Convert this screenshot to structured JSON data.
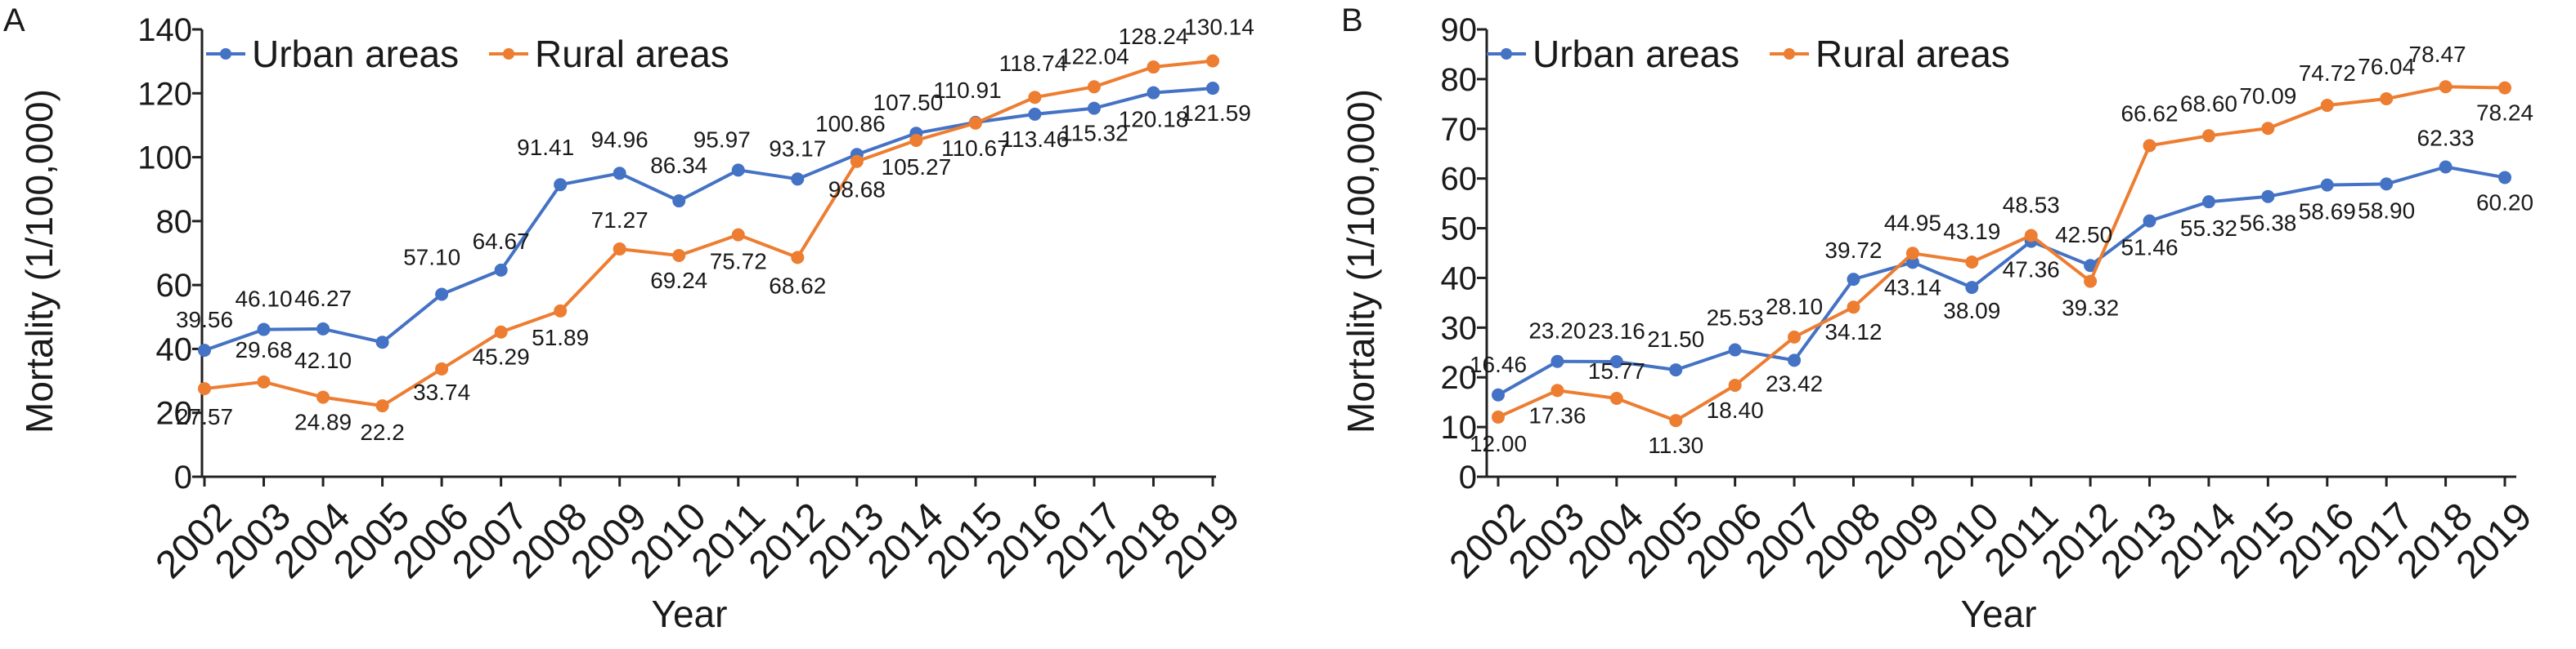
{
  "colors": {
    "urban": "#4472C4",
    "rural": "#ED7D31",
    "axis": "#222222",
    "text": "#1a1a1a"
  },
  "legend_position": "top-left",
  "chart_data": [
    {
      "type": "line",
      "panel": "A",
      "xlabel": "Year",
      "ylabel": "Mortality (1/100,000)",
      "ylim": [
        0,
        140
      ],
      "yticks": [
        "0",
        "20",
        "40",
        "60",
        "80",
        "100",
        "120",
        "140"
      ],
      "categories": [
        "2002",
        "2003",
        "2004",
        "2005",
        "2006",
        "2007",
        "2008",
        "2009",
        "2010",
        "2011",
        "2012",
        "2013",
        "2014",
        "2015",
        "2016",
        "2017",
        "2018",
        "2019"
      ],
      "grid": false,
      "series": [
        {
          "name": "Urban areas",
          "values": [
            39.56,
            46.1,
            46.27,
            42.1,
            57.1,
            64.67,
            91.41,
            94.96,
            86.34,
            95.97,
            93.17,
            100.86,
            107.5,
            110.91,
            113.46,
            115.32,
            120.18,
            121.59
          ],
          "labels": [
            "39.56",
            "46.10",
            "46.27",
            "",
            "57.10",
            "64.67",
            "91.41",
            "94.96",
            "86.34",
            "95.97",
            "93.17",
            "100.86",
            "107.50",
            "110.91",
            "113.46",
            "115.32",
            "120.18",
            "121.59"
          ]
        },
        {
          "name": "Rural areas",
          "values": [
            27.57,
            29.68,
            24.89,
            22.2,
            33.74,
            45.29,
            51.89,
            71.27,
            69.24,
            75.72,
            68.62,
            98.68,
            105.27,
            110.67,
            118.74,
            122.04,
            128.24,
            130.14
          ],
          "labels": [
            "27.57",
            "29.68",
            "24.89",
            "22.2",
            "33.74",
            "45.29",
            "51.89",
            "71.27",
            "69.24",
            "75.72",
            "68.62",
            "98.68",
            "105.27",
            "110.67",
            "118.74",
            "122.04",
            "128.24",
            "130.14"
          ]
        }
      ],
      "extra_labels": [
        "42.10"
      ]
    },
    {
      "type": "line",
      "panel": "B",
      "xlabel": "Year",
      "ylabel": "Mortality (1/100,000)",
      "ylim": [
        0,
        90
      ],
      "yticks": [
        "0",
        "10",
        "20",
        "30",
        "40",
        "50",
        "60",
        "70",
        "80",
        "90"
      ],
      "categories": [
        "2002",
        "2003",
        "2004",
        "2005",
        "2006",
        "2007",
        "2008",
        "2009",
        "2010",
        "2011",
        "2012",
        "2013",
        "2014",
        "2015",
        "2016",
        "2017",
        "2018",
        "2019"
      ],
      "grid": false,
      "series": [
        {
          "name": "Urban areas",
          "values": [
            16.46,
            23.2,
            23.16,
            21.5,
            25.53,
            23.42,
            39.72,
            43.14,
            38.09,
            47.36,
            42.5,
            51.46,
            55.32,
            56.38,
            58.69,
            58.9,
            62.33,
            60.2
          ],
          "labels": [
            "16.46",
            "23.20",
            "23.16",
            "21.50",
            "25.53",
            "23.42",
            "39.72",
            "43.14",
            "38.09",
            "47.36",
            "42.50",
            "51.46",
            "55.32",
            "56.38",
            "58.69",
            "58.90",
            "62.33",
            "60.20"
          ]
        },
        {
          "name": "Rural areas",
          "values": [
            12.0,
            17.36,
            15.77,
            11.3,
            18.4,
            28.1,
            34.12,
            44.95,
            43.19,
            48.53,
            39.32,
            66.62,
            68.6,
            70.09,
            74.72,
            76.04,
            78.47,
            78.24
          ],
          "labels": [
            "12.00",
            "17.36",
            "15.77",
            "11.30",
            "18.40",
            "28.10",
            "34.12",
            "44.95",
            "43.19",
            "48.53",
            "39.32",
            "66.62",
            "68.60",
            "70.09",
            "74.72",
            "76.04",
            "78.47",
            "78.24"
          ]
        }
      ],
      "extra_labels": []
    }
  ]
}
